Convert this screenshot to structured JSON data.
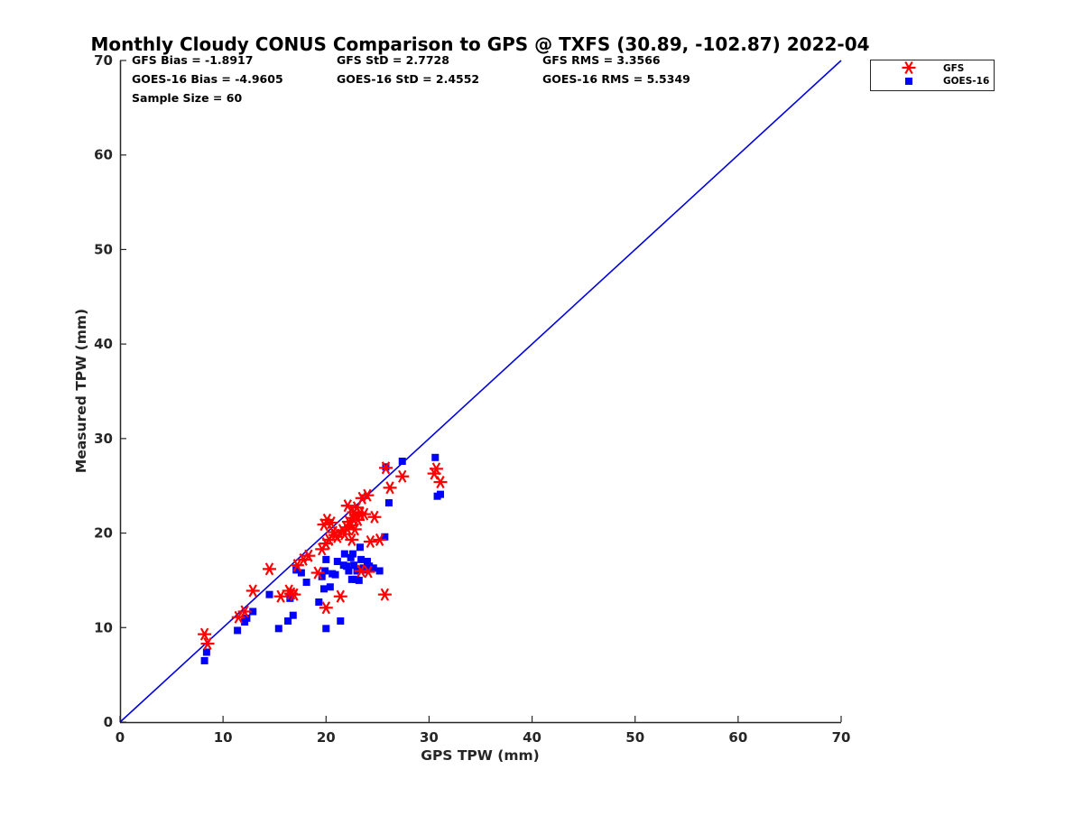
{
  "chart_data": {
    "type": "scatter",
    "title": "Monthly Cloudy CONUS Comparison to GPS @ TXFS (30.89, -102.87) 2022-04",
    "xlabel": "GPS TPW (mm)",
    "ylabel": "Measured TPW (mm)",
    "xlim": [
      0,
      70
    ],
    "ylim": [
      0,
      70
    ],
    "xticks": [
      0,
      10,
      20,
      30,
      40,
      50,
      60,
      70
    ],
    "yticks": [
      0,
      10,
      20,
      30,
      40,
      50,
      60,
      70
    ],
    "grid": false,
    "legend_position": "top-right",
    "stats": [
      [
        "GFS Bias = -1.8917",
        "GFS StD = 2.7728",
        "GFS RMS = 3.3566"
      ],
      [
        "GOES-16 Bias = -4.9605",
        "GOES-16 StD = 2.4552",
        "GOES-16 RMS = 5.5349"
      ],
      [
        "Sample Size = 60"
      ]
    ],
    "reference_line": {
      "x": [
        0,
        70
      ],
      "y": [
        0,
        70
      ],
      "color": "#0000e0"
    },
    "series": [
      {
        "name": "GFS",
        "marker": "asterisk",
        "color": "#ff0000",
        "points": [
          [
            8.2,
            9.3
          ],
          [
            8.5,
            8.3
          ],
          [
            11.5,
            11.1
          ],
          [
            12.1,
            11.7
          ],
          [
            12.9,
            13.9
          ],
          [
            14.5,
            16.2
          ],
          [
            15.6,
            13.3
          ],
          [
            16.4,
            13.9
          ],
          [
            16.6,
            13.6
          ],
          [
            16.9,
            13.5
          ],
          [
            17.2,
            16.6
          ],
          [
            17.8,
            17.2
          ],
          [
            18.3,
            17.6
          ],
          [
            19.2,
            15.8
          ],
          [
            19.6,
            18.3
          ],
          [
            19.8,
            20.9
          ],
          [
            20.0,
            12.1
          ],
          [
            20.0,
            18.9
          ],
          [
            20.1,
            21.4
          ],
          [
            20.3,
            19.3
          ],
          [
            20.5,
            21.1
          ],
          [
            20.7,
            20.1
          ],
          [
            20.9,
            19.8
          ],
          [
            21.1,
            19.6
          ],
          [
            21.4,
            13.3
          ],
          [
            21.6,
            20.3
          ],
          [
            21.8,
            19.9
          ],
          [
            22.0,
            20.6
          ],
          [
            22.1,
            22.9
          ],
          [
            22.2,
            21.2
          ],
          [
            22.4,
            20.8
          ],
          [
            22.5,
            19.3
          ],
          [
            22.6,
            21.6
          ],
          [
            22.7,
            22.2
          ],
          [
            22.8,
            20.4
          ],
          [
            22.9,
            21.9
          ],
          [
            23.0,
            22.7
          ],
          [
            23.1,
            21.4
          ],
          [
            23.3,
            22.1
          ],
          [
            23.4,
            16.0
          ],
          [
            23.5,
            23.7
          ],
          [
            23.7,
            22.0
          ],
          [
            24.0,
            24.0
          ],
          [
            24.1,
            15.9
          ],
          [
            24.3,
            19.1
          ],
          [
            24.7,
            21.7
          ],
          [
            25.2,
            19.3
          ],
          [
            25.7,
            13.5
          ],
          [
            25.8,
            26.9
          ],
          [
            26.2,
            24.8
          ],
          [
            27.4,
            26.0
          ],
          [
            30.5,
            26.3
          ],
          [
            30.7,
            26.8
          ],
          [
            31.1,
            25.4
          ]
        ]
      },
      {
        "name": "GOES-16",
        "marker": "square",
        "color": "#0000ff",
        "points": [
          [
            8.2,
            6.5
          ],
          [
            8.4,
            7.4
          ],
          [
            11.4,
            9.7
          ],
          [
            12.1,
            10.6
          ],
          [
            12.3,
            11.0
          ],
          [
            12.9,
            11.7
          ],
          [
            14.5,
            13.5
          ],
          [
            15.4,
            9.9
          ],
          [
            16.3,
            10.7
          ],
          [
            16.5,
            13.1
          ],
          [
            16.8,
            11.3
          ],
          [
            17.1,
            16.1
          ],
          [
            17.6,
            15.8
          ],
          [
            18.1,
            14.8
          ],
          [
            19.3,
            12.7
          ],
          [
            19.6,
            15.4
          ],
          [
            19.8,
            14.1
          ],
          [
            19.9,
            16.0
          ],
          [
            20.0,
            9.9
          ],
          [
            20.0,
            17.2
          ],
          [
            20.4,
            14.3
          ],
          [
            20.6,
            15.7
          ],
          [
            20.9,
            15.6
          ],
          [
            21.1,
            17.0
          ],
          [
            21.4,
            10.7
          ],
          [
            21.7,
            16.6
          ],
          [
            21.8,
            17.8
          ],
          [
            22.0,
            16.5
          ],
          [
            22.2,
            16.0
          ],
          [
            22.4,
            17.4
          ],
          [
            22.5,
            15.1
          ],
          [
            22.6,
            17.8
          ],
          [
            22.7,
            16.6
          ],
          [
            22.9,
            15.1
          ],
          [
            23.0,
            16.0
          ],
          [
            23.2,
            15.0
          ],
          [
            23.3,
            18.5
          ],
          [
            23.4,
            17.2
          ],
          [
            23.6,
            16.3
          ],
          [
            23.8,
            16.1
          ],
          [
            24.0,
            17.0
          ],
          [
            24.2,
            16.5
          ],
          [
            24.6,
            16.3
          ],
          [
            25.2,
            16.0
          ],
          [
            25.7,
            19.6
          ],
          [
            25.8,
            27.0
          ],
          [
            26.1,
            23.2
          ],
          [
            27.4,
            27.6
          ],
          [
            30.6,
            28.0
          ],
          [
            30.8,
            23.9
          ],
          [
            31.1,
            24.1
          ]
        ]
      }
    ]
  }
}
